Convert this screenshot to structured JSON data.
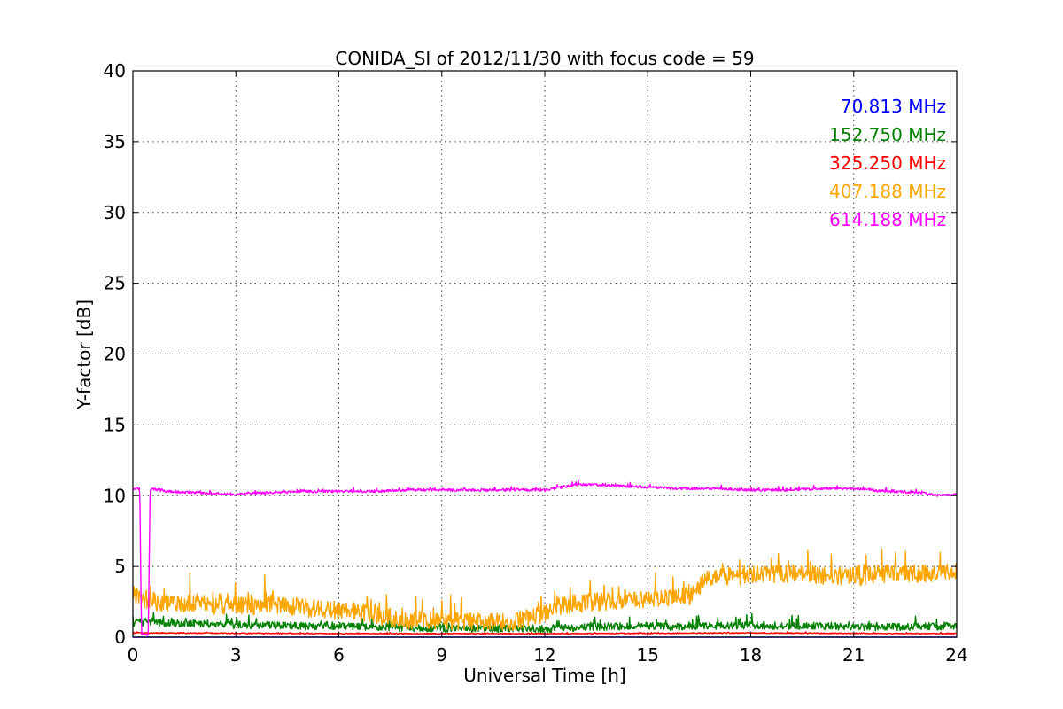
{
  "chart_data": {
    "type": "line",
    "title": "CONIDA_SI of 2012/11/30 with focus code = 59",
    "xlabel": "Universal Time [h]",
    "ylabel": "Y-factor [dB]",
    "xlim": [
      0,
      24
    ],
    "ylim": [
      0,
      40
    ],
    "xticks": [
      0,
      3,
      6,
      9,
      12,
      15,
      18,
      21,
      24
    ],
    "yticks": [
      0,
      5,
      10,
      15,
      20,
      25,
      30,
      35,
      40
    ],
    "grid": true,
    "legend_placement": "top-right",
    "series": [
      {
        "name": "70.813 MHz",
        "color": "#0000ff",
        "x": [
          0,
          24
        ],
        "y": [
          0,
          0
        ],
        "noise": 0
      },
      {
        "name": "152.750 MHz",
        "color": "#008000",
        "x": [
          0,
          0.5,
          1,
          1.5,
          2,
          3,
          4,
          5,
          6,
          7,
          8,
          9,
          10,
          11,
          12,
          13,
          14,
          15,
          16,
          17,
          18,
          19,
          20,
          21,
          22,
          23,
          24
        ],
        "y": [
          1.0,
          1.1,
          1.0,
          1.0,
          0.95,
          0.85,
          0.85,
          0.8,
          0.8,
          0.75,
          0.65,
          0.6,
          0.6,
          0.6,
          0.6,
          0.7,
          0.75,
          0.8,
          0.75,
          0.8,
          0.85,
          0.8,
          0.8,
          0.75,
          0.7,
          0.75,
          0.8
        ],
        "noise": 0.45
      },
      {
        "name": "325.250 MHz",
        "color": "#ff0000",
        "x": [
          0,
          6,
          12,
          18,
          24
        ],
        "y": [
          0.3,
          0.25,
          0.25,
          0.3,
          0.25
        ],
        "noise": 0.06
      },
      {
        "name": "407.188 MHz",
        "color": "#ffa500",
        "x": [
          0,
          0.5,
          1,
          1.5,
          2,
          2.5,
          3,
          3.5,
          4,
          4.5,
          5,
          5.5,
          6,
          6.5,
          7,
          7.5,
          8,
          9,
          10,
          11,
          11.5,
          12,
          12.5,
          13,
          14,
          15,
          16,
          16.4,
          16.6,
          17,
          18,
          19,
          20,
          21,
          22,
          23,
          24
        ],
        "y": [
          3.0,
          2.6,
          2.4,
          2.3,
          2.5,
          2.2,
          2.3,
          2.2,
          2.4,
          2.2,
          2.1,
          2.0,
          1.9,
          1.8,
          1.6,
          1.4,
          1.2,
          1.1,
          1.1,
          1.1,
          1.3,
          1.6,
          2.2,
          2.4,
          2.6,
          2.7,
          2.9,
          3.0,
          4.0,
          4.2,
          4.4,
          4.5,
          4.4,
          4.3,
          4.5,
          4.5,
          4.6
        ],
        "noise": 1.1
      },
      {
        "name": "614.188 MHz",
        "color": "#ff00ff",
        "x": [
          0,
          0.2,
          0.25,
          0.3,
          0.45,
          0.5,
          0.55,
          1,
          2,
          3,
          4,
          5,
          6,
          7,
          8,
          9,
          10,
          11,
          12,
          12.5,
          13,
          14,
          15,
          16,
          17,
          18,
          19,
          20,
          21,
          22,
          23,
          23.5,
          24
        ],
        "y": [
          10.5,
          10.5,
          0.2,
          0.2,
          0.2,
          10.3,
          10.5,
          10.3,
          10.2,
          10.1,
          10.2,
          10.3,
          10.3,
          10.3,
          10.4,
          10.4,
          10.4,
          10.4,
          10.4,
          10.6,
          10.8,
          10.7,
          10.6,
          10.5,
          10.5,
          10.4,
          10.4,
          10.5,
          10.5,
          10.3,
          10.2,
          10.0,
          10.1
        ],
        "noise": 0.15
      }
    ]
  }
}
